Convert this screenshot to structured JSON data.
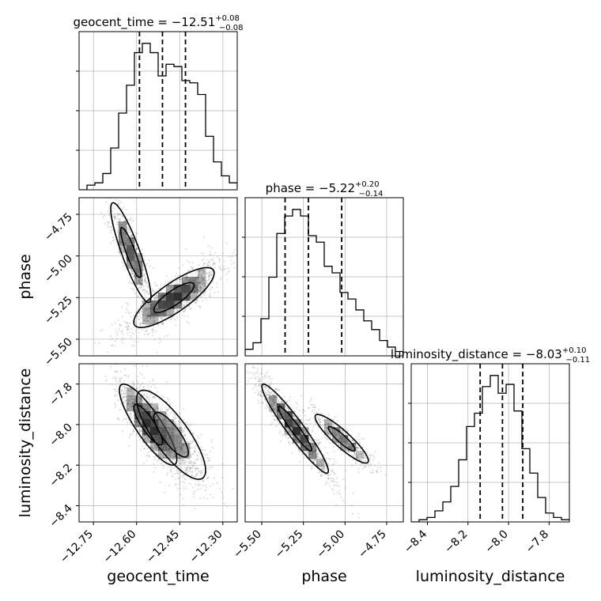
{
  "chart_data": {
    "type": "corner",
    "parameters": [
      {
        "name": "geocent_time",
        "range": [
          -12.8,
          -12.25
        ],
        "ticks": [
          -12.75,
          -12.6,
          -12.45,
          -12.3
        ],
        "tick_labels": [
          "−12.75",
          "−12.60",
          "−12.45",
          "−12.30"
        ],
        "title_main": "geocent_time = −12.51",
        "title_sup": "+0.08",
        "title_sub": "−0.08",
        "median": -12.51,
        "lower": -12.59,
        "upper": -12.43,
        "hist_start": -12.8,
        "hist_step": 0.0275,
        "hist": [
          0,
          2,
          3,
          7,
          18,
          33,
          45,
          59,
          63,
          59,
          49,
          54,
          53,
          47,
          46,
          41,
          23,
          12,
          6,
          3,
          1,
          0
        ]
      },
      {
        "name": "phase",
        "range": [
          -5.6,
          -4.65
        ],
        "ticks": [
          -5.5,
          -5.25,
          -5.0,
          -4.75
        ],
        "tick_labels": [
          "−5.50",
          "−5.25",
          "−5.00",
          "−4.75"
        ],
        "title_main": "phase = −5.22",
        "title_sup": "+0.20",
        "title_sub": "−0.14",
        "median": -5.22,
        "lower": -5.36,
        "upper": -5.02,
        "hist_start": -5.6,
        "hist_step": 0.0475,
        "hist": [
          3,
          6,
          17,
          36,
          56,
          64,
          67,
          64,
          55,
          52,
          41,
          38,
          29,
          26,
          21,
          16,
          12,
          7,
          4,
          2
        ]
      },
      {
        "name": "luminosity_distance",
        "range": [
          -8.48,
          -7.7
        ],
        "ticks": [
          -8.4,
          -8.2,
          -8.0,
          -7.8
        ],
        "tick_labels": [
          "−8.4",
          "−8.2",
          "−8.0",
          "−7.8"
        ],
        "title_main": "luminosity_distance = −8.03",
        "title_sup": "+0.10",
        "title_sub": "−0.11",
        "median": -8.03,
        "lower": -8.14,
        "upper": -7.93,
        "hist_start": -8.48,
        "hist_step": 0.039,
        "hist": [
          0,
          1,
          2,
          5,
          9,
          16,
          28,
          43,
          49,
          61,
          66,
          58,
          62,
          50,
          33,
          22,
          11,
          4,
          2,
          1
        ]
      }
    ],
    "contour_levels": [
      "39.3%",
      "86.5%"
    ],
    "pairs": [
      {
        "x": "geocent_time",
        "y": "phase",
        "modes": [
          {
            "cx": -12.62,
            "cy": -4.98,
            "sx": 0.035,
            "sy": 0.15,
            "rho": -0.88,
            "weight": 0.35
          },
          {
            "cx": -12.47,
            "cy": -5.25,
            "sx": 0.07,
            "sy": 0.09,
            "rho": 0.82,
            "weight": 0.65
          }
        ]
      },
      {
        "x": "geocent_time",
        "y": "luminosity_distance",
        "modes": [
          {
            "cx": -12.56,
            "cy": -8.0,
            "sx": 0.05,
            "sy": 0.1,
            "rho": -0.85,
            "weight": 0.55
          },
          {
            "cx": -12.48,
            "cy": -8.05,
            "sx": 0.06,
            "sy": 0.11,
            "rho": -0.8,
            "weight": 0.45
          }
        ]
      },
      {
        "x": "phase",
        "y": "luminosity_distance",
        "modes": [
          {
            "cx": -5.3,
            "cy": -8.02,
            "sx": 0.1,
            "sy": 0.11,
            "rho": -0.95,
            "weight": 0.72
          },
          {
            "cx": -5.02,
            "cy": -8.07,
            "sx": 0.08,
            "sy": 0.06,
            "rho": -0.9,
            "weight": 0.28
          }
        ]
      }
    ],
    "grid": true
  },
  "colors": {
    "line": "#000000",
    "grid": "#b0b0b0",
    "points": "#000000",
    "density": "#000000"
  }
}
